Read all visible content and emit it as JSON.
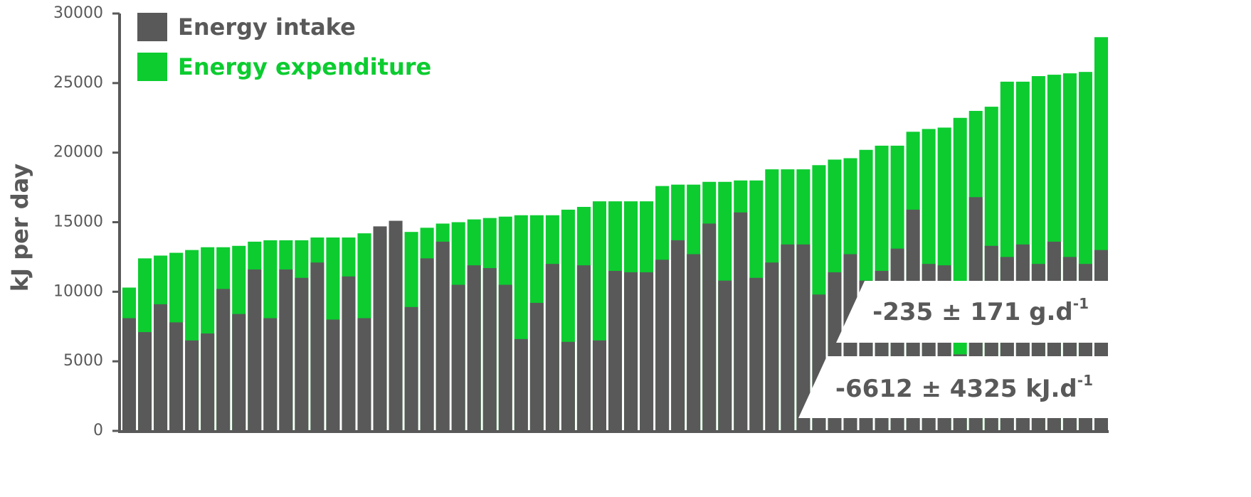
{
  "chart_data": {
    "type": "bar",
    "y_label": "kJ per day",
    "ylim": [
      0,
      30000
    ],
    "yticks": [
      0,
      5000,
      10000,
      15000,
      20000,
      25000,
      30000
    ],
    "series": [
      {
        "name": "Energy expenditure",
        "color": "#0ccc30",
        "values": [
          10300,
          12400,
          12600,
          12800,
          13000,
          13200,
          13200,
          13300,
          13600,
          13700,
          13700,
          13700,
          13900,
          13900,
          13900,
          14200,
          14200,
          14300,
          14300,
          14600,
          14900,
          15000,
          15200,
          15300,
          15400,
          15500,
          15500,
          15500,
          15900,
          16100,
          16500,
          16500,
          16500,
          16500,
          17600,
          17700,
          17700,
          17900,
          17900,
          18000,
          18000,
          18800,
          18800,
          18800,
          19100,
          19500,
          19600,
          20200,
          20500,
          20500,
          21500,
          21700,
          21800,
          22500,
          23000,
          23300,
          25100,
          25100,
          25500,
          25600,
          25700,
          25800,
          28300
        ]
      },
      {
        "name": "Energy intake",
        "color": "#595959",
        "values": [
          8100,
          7100,
          9100,
          7800,
          6500,
          7000,
          10200,
          8400,
          11600,
          8100,
          11600,
          11000,
          12100,
          8000,
          11100,
          8100,
          14700,
          15100,
          8900,
          12400,
          13600,
          10500,
          11900,
          11700,
          10500,
          6600,
          9200,
          12000,
          6400,
          11900,
          6500,
          11500,
          11400,
          11400,
          12300,
          13700,
          12700,
          14900,
          10800,
          15700,
          11000,
          12100,
          13400,
          13400,
          9800,
          11400,
          12700,
          10800,
          11500,
          13100,
          15900,
          12000,
          11900,
          5500,
          16800,
          13300,
          12500,
          13400,
          12000,
          13600,
          12500,
          12000,
          13000
        ]
      }
    ],
    "annotations": [
      {
        "text": "-235 ± 171 g.d",
        "sup": "-1"
      },
      {
        "text": "-6612 ± 4325 kJ.d",
        "sup": "-1"
      }
    ]
  }
}
